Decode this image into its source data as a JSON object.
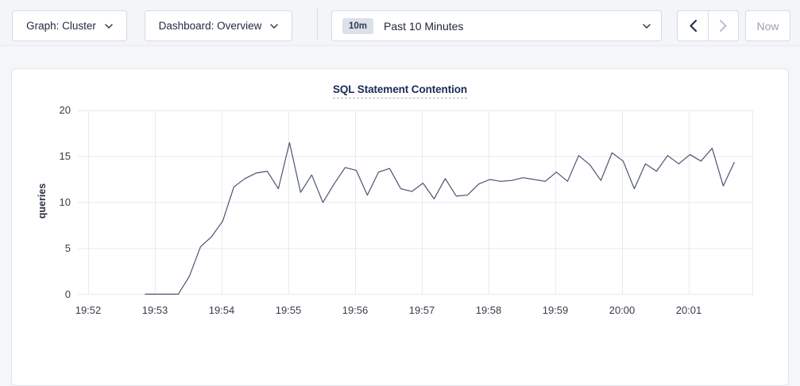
{
  "toolbar": {
    "graph_dropdown": {
      "label": "Graph: Cluster"
    },
    "dashboard_dropdown": {
      "label": "Dashboard: Overview"
    },
    "time_range": {
      "badge": "10m",
      "label": "Past 10 Minutes"
    },
    "now_label": "Now"
  },
  "chart_data": {
    "type": "line",
    "title": "SQL Statement Contention",
    "ylabel": "queries",
    "ylim": [
      0,
      20
    ],
    "yticks": [
      0,
      5,
      10,
      15,
      20
    ],
    "xticks": [
      "19:52",
      "19:53",
      "19:54",
      "19:55",
      "19:56",
      "19:57",
      "19:58",
      "19:59",
      "20:00",
      "20:01"
    ],
    "grid": true,
    "series": [
      {
        "name": "SQL Statement Contention",
        "color": "#4a5471",
        "start_offset_seconds_after_1952": 51,
        "interval_seconds": 10,
        "values": [
          0.05,
          0.05,
          0.05,
          0.05,
          2.0,
          5.2,
          6.3,
          8.0,
          11.7,
          12.6,
          13.2,
          13.4,
          11.5,
          16.5,
          11.1,
          13.0,
          10.0,
          12.0,
          13.8,
          13.5,
          10.8,
          13.3,
          13.7,
          11.5,
          11.2,
          12.1,
          10.4,
          12.6,
          10.7,
          10.8,
          12.0,
          12.5,
          12.3,
          12.4,
          12.7,
          12.5,
          12.3,
          13.3,
          12.3,
          15.1,
          14.1,
          12.4,
          15.4,
          14.5,
          11.5,
          14.2,
          13.4,
          15.1,
          14.2,
          15.2,
          14.5,
          15.9,
          11.8,
          14.4
        ]
      }
    ],
    "colors": {
      "gridline": "#e9eaee"
    }
  }
}
